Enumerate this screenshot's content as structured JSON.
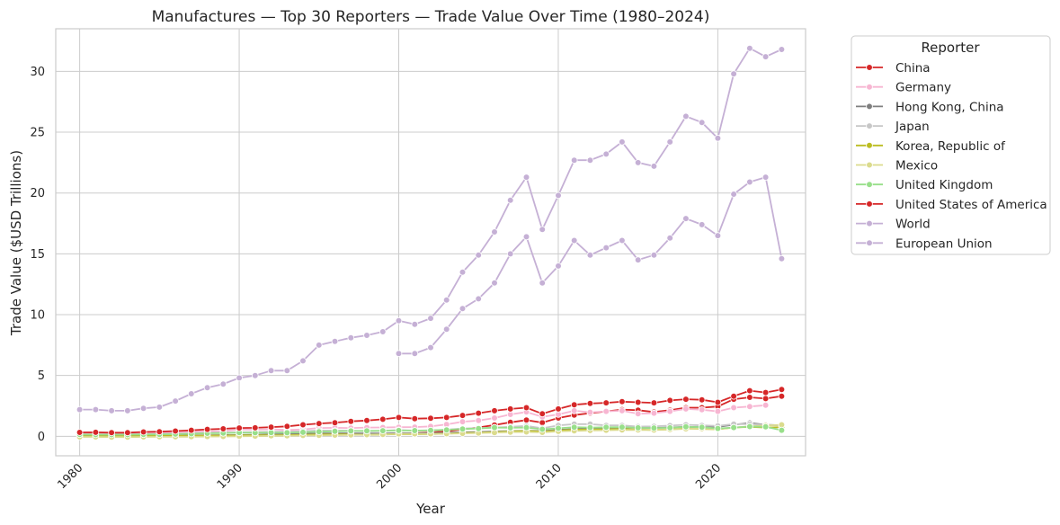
{
  "chart_data": {
    "type": "line",
    "title": "Manufactures — Top 30 Reporters — Trade Value Over Time (1980–2024)",
    "xlabel": "Year",
    "ylabel": "Trade Value ($USD Trillions)",
    "xlim": [
      1978.5,
      2025.5
    ],
    "ylim": [
      -1.6,
      33.5
    ],
    "xticks": [
      1980,
      1990,
      2000,
      2010,
      2020
    ],
    "yticks": [
      0,
      5,
      10,
      15,
      20,
      25,
      30
    ],
    "grid": true,
    "legend": {
      "title": "Reporter",
      "placement": "outside-right"
    },
    "series": [
      {
        "name": "China",
        "color": "#d62728",
        "x": [
          1980,
          1981,
          1982,
          1983,
          1984,
          1985,
          1986,
          1987,
          1988,
          1989,
          1990,
          1991,
          1992,
          1993,
          1994,
          1995,
          1996,
          1997,
          1998,
          1999,
          2000,
          2001,
          2002,
          2003,
          2004,
          2005,
          2006,
          2007,
          2008,
          2009,
          2010,
          2011,
          2012,
          2013,
          2014,
          2015,
          2016,
          2017,
          2018,
          2019,
          2020,
          2021,
          2022,
          2023,
          2024
        ],
        "y": [
          0.02,
          0.02,
          0.02,
          0.02,
          0.03,
          0.03,
          0.03,
          0.04,
          0.05,
          0.05,
          0.06,
          0.07,
          0.08,
          0.09,
          0.11,
          0.13,
          0.14,
          0.17,
          0.18,
          0.19,
          0.24,
          0.26,
          0.31,
          0.42,
          0.57,
          0.73,
          0.93,
          1.15,
          1.33,
          1.13,
          1.5,
          1.75,
          1.9,
          2.05,
          2.2,
          2.15,
          2.0,
          2.15,
          2.35,
          2.35,
          2.45,
          3.05,
          3.2,
          3.1,
          3.3
        ]
      },
      {
        "name": "Germany",
        "color": "#f7b6d2",
        "x": [
          1980,
          1981,
          1982,
          1983,
          1984,
          1985,
          1986,
          1987,
          1988,
          1989,
          1990,
          1991,
          1992,
          1993,
          1994,
          1995,
          1996,
          1997,
          1998,
          1999,
          2000,
          2001,
          2002,
          2003,
          2004,
          2005,
          2006,
          2007,
          2008,
          2009,
          2010,
          2011,
          2012,
          2013,
          2014,
          2015,
          2016,
          2017,
          2018,
          2019,
          2020,
          2021,
          2022,
          2023
        ],
        "y": [
          0.25,
          0.22,
          0.22,
          0.22,
          0.24,
          0.25,
          0.32,
          0.38,
          0.42,
          0.44,
          0.55,
          0.55,
          0.58,
          0.52,
          0.57,
          0.68,
          0.7,
          0.68,
          0.72,
          0.73,
          0.75,
          0.76,
          0.82,
          0.98,
          1.2,
          1.3,
          1.5,
          1.8,
          2.0,
          1.6,
          1.8,
          2.1,
          1.98,
          2.05,
          2.1,
          1.85,
          1.9,
          2.05,
          2.25,
          2.18,
          2.05,
          2.35,
          2.45,
          2.55
        ]
      },
      {
        "name": "Hong Kong, China",
        "color": "#7f7f7f",
        "x": [
          1980,
          1981,
          1982,
          1983,
          1984,
          1985,
          1986,
          1987,
          1988,
          1989,
          1990,
          1991,
          1992,
          1993,
          1994,
          1995,
          1996,
          1997,
          1998,
          1999,
          2000,
          2001,
          2002,
          2003,
          2004,
          2005,
          2006,
          2007,
          2008,
          2009,
          2010,
          2011,
          2012,
          2013,
          2014,
          2015,
          2016,
          2017,
          2018,
          2019,
          2020,
          2021,
          2022,
          2023,
          2024
        ],
        "y": [
          0.03,
          0.03,
          0.03,
          0.03,
          0.04,
          0.04,
          0.05,
          0.07,
          0.09,
          0.1,
          0.11,
          0.13,
          0.16,
          0.18,
          0.2,
          0.23,
          0.24,
          0.25,
          0.23,
          0.23,
          0.26,
          0.25,
          0.26,
          0.29,
          0.33,
          0.36,
          0.4,
          0.43,
          0.46,
          0.43,
          0.53,
          0.6,
          0.65,
          0.7,
          0.72,
          0.7,
          0.69,
          0.73,
          0.78,
          0.75,
          0.78,
          0.95,
          1.1,
          0.95,
          0.9
        ]
      },
      {
        "name": "Japan",
        "color": "#c7c7c7",
        "x": [
          1980,
          1981,
          1982,
          1983,
          1984,
          1985,
          1986,
          1987,
          1988,
          1989,
          1990,
          1991,
          1992,
          1993,
          1994,
          1995,
          1996,
          1997,
          1998,
          1999,
          2000,
          2001,
          2002,
          2003,
          2004,
          2005,
          2006,
          2007,
          2008,
          2009,
          2010,
          2011,
          2012,
          2013,
          2014,
          2015,
          2016,
          2017,
          2018,
          2019,
          2020,
          2021,
          2022,
          2023,
          2024
        ],
        "y": [
          0.15,
          0.16,
          0.15,
          0.16,
          0.18,
          0.18,
          0.22,
          0.25,
          0.29,
          0.31,
          0.33,
          0.35,
          0.37,
          0.39,
          0.42,
          0.48,
          0.47,
          0.46,
          0.42,
          0.45,
          0.52,
          0.47,
          0.48,
          0.55,
          0.65,
          0.68,
          0.72,
          0.78,
          0.85,
          0.66,
          0.9,
          1.0,
          1.0,
          0.9,
          0.9,
          0.8,
          0.82,
          0.88,
          0.95,
          0.9,
          0.85,
          1.0,
          1.0,
          0.95,
          0.9
        ]
      },
      {
        "name": "Korea, Republic of",
        "color": "#bcbd22",
        "x": [
          1980,
          1981,
          1982,
          1983,
          1984,
          1985,
          1986,
          1987,
          1988,
          1989,
          1990,
          1991,
          1992,
          1993,
          1994,
          1995,
          1996,
          1997,
          1998,
          1999,
          2000,
          2001,
          2002,
          2003,
          2004,
          2005,
          2006,
          2007,
          2008,
          2009,
          2010,
          2011,
          2012,
          2013,
          2014,
          2015,
          2016,
          2017,
          2018,
          2019,
          2020,
          2021,
          2022,
          2023,
          2024
        ],
        "y": [
          0.02,
          0.02,
          0.02,
          0.02,
          0.03,
          0.03,
          0.04,
          0.05,
          0.06,
          0.07,
          0.08,
          0.09,
          0.09,
          0.1,
          0.12,
          0.15,
          0.16,
          0.16,
          0.13,
          0.15,
          0.19,
          0.17,
          0.18,
          0.22,
          0.27,
          0.3,
          0.35,
          0.4,
          0.45,
          0.38,
          0.48,
          0.55,
          0.56,
          0.58,
          0.6,
          0.55,
          0.52,
          0.58,
          0.65,
          0.6,
          0.58,
          0.72,
          0.78,
          0.72,
          0.75
        ]
      },
      {
        "name": "Mexico",
        "color": "#dbdb8d",
        "x": [
          1980,
          1981,
          1982,
          1983,
          1984,
          1985,
          1986,
          1987,
          1988,
          1989,
          1990,
          1991,
          1992,
          1993,
          1994,
          1995,
          1996,
          1997,
          1998,
          1999,
          2000,
          2001,
          2002,
          2003,
          2004,
          2005,
          2006,
          2007,
          2008,
          2009,
          2010,
          2011,
          2012,
          2013,
          2014,
          2015,
          2016,
          2017,
          2018,
          2019,
          2020,
          2021,
          2022,
          2023,
          2024
        ],
        "y": [
          -0.05,
          -0.05,
          -0.06,
          -0.06,
          -0.05,
          -0.04,
          -0.04,
          -0.03,
          -0.02,
          -0.01,
          0.0,
          0.02,
          0.04,
          0.05,
          0.07,
          0.08,
          0.1,
          0.12,
          0.14,
          0.16,
          0.2,
          0.2,
          0.2,
          0.21,
          0.24,
          0.27,
          0.31,
          0.34,
          0.36,
          0.32,
          0.4,
          0.45,
          0.48,
          0.5,
          0.53,
          0.52,
          0.51,
          0.56,
          0.62,
          0.63,
          0.6,
          0.72,
          0.82,
          0.88,
          0.95
        ]
      },
      {
        "name": "United Kingdom",
        "color": "#98df8a",
        "x": [
          1980,
          1981,
          1982,
          1983,
          1984,
          1985,
          1986,
          1987,
          1988,
          1989,
          1990,
          1991,
          1992,
          1993,
          1994,
          1995,
          1996,
          1997,
          1998,
          1999,
          2000,
          2001,
          2002,
          2003,
          2004,
          2005,
          2006,
          2007,
          2008,
          2009,
          2010,
          2011,
          2012,
          2013,
          2014,
          2015,
          2016,
          2017,
          2018,
          2019,
          2020,
          2021,
          2022,
          2023,
          2024
        ],
        "y": [
          0.15,
          0.14,
          0.14,
          0.14,
          0.15,
          0.16,
          0.18,
          0.21,
          0.25,
          0.26,
          0.3,
          0.29,
          0.3,
          0.29,
          0.33,
          0.38,
          0.41,
          0.44,
          0.45,
          0.46,
          0.48,
          0.47,
          0.49,
          0.53,
          0.6,
          0.64,
          0.72,
          0.7,
          0.72,
          0.58,
          0.66,
          0.75,
          0.72,
          0.74,
          0.76,
          0.7,
          0.68,
          0.7,
          0.78,
          0.75,
          0.65,
          0.72,
          0.8,
          0.78,
          0.5
        ]
      },
      {
        "name": "United States of America",
        "color": "#d62728",
        "x": [
          1980,
          1981,
          1982,
          1983,
          1984,
          1985,
          1986,
          1987,
          1988,
          1989,
          1990,
          1991,
          1992,
          1993,
          1994,
          1995,
          1996,
          1997,
          1998,
          1999,
          2000,
          2001,
          2002,
          2003,
          2004,
          2005,
          2006,
          2007,
          2008,
          2009,
          2010,
          2011,
          2012,
          2013,
          2014,
          2015,
          2016,
          2017,
          2018,
          2019,
          2020,
          2021,
          2022,
          2023,
          2024
        ],
        "y": [
          0.32,
          0.33,
          0.3,
          0.3,
          0.36,
          0.38,
          0.43,
          0.5,
          0.57,
          0.62,
          0.68,
          0.7,
          0.76,
          0.82,
          0.95,
          1.05,
          1.12,
          1.23,
          1.3,
          1.4,
          1.55,
          1.45,
          1.48,
          1.55,
          1.72,
          1.9,
          2.1,
          2.25,
          2.35,
          1.85,
          2.25,
          2.6,
          2.7,
          2.75,
          2.85,
          2.8,
          2.75,
          2.95,
          3.05,
          3.0,
          2.8,
          3.3,
          3.75,
          3.6,
          3.85
        ]
      },
      {
        "name": "World",
        "color": "#c5b0d5",
        "x": [
          1980,
          1981,
          1982,
          1983,
          1984,
          1985,
          1986,
          1987,
          1988,
          1989,
          1990,
          1991,
          1992,
          1993,
          1994,
          1995,
          1996,
          1997,
          1998,
          1999,
          2000,
          2001,
          2002,
          2003,
          2004,
          2005,
          2006,
          2007,
          2008,
          2009,
          2010,
          2011,
          2012,
          2013,
          2014,
          2015,
          2016,
          2017,
          2018,
          2019,
          2020,
          2021,
          2022,
          2023,
          2024
        ],
        "y": [
          2.2,
          2.2,
          2.1,
          2.1,
          2.3,
          2.4,
          2.9,
          3.5,
          4.0,
          4.3,
          4.8,
          5.0,
          5.4,
          5.4,
          6.2,
          7.5,
          7.8,
          8.1,
          8.3,
          8.6,
          9.5,
          9.2,
          9.7,
          11.2,
          13.5,
          14.9,
          16.8,
          19.4,
          21.3,
          17.0,
          19.8,
          22.7,
          22.7,
          23.2,
          24.2,
          22.5,
          22.2,
          24.2,
          26.3,
          25.8,
          24.5,
          29.8,
          31.9,
          31.2,
          31.8
        ]
      },
      {
        "name": "European Union",
        "color": "#c5b0d5",
        "x": [
          2000,
          2001,
          2002,
          2003,
          2004,
          2005,
          2006,
          2007,
          2008,
          2009,
          2010,
          2011,
          2012,
          2013,
          2014,
          2015,
          2016,
          2017,
          2018,
          2019,
          2020,
          2021,
          2022,
          2023,
          2024
        ],
        "y": [
          6.8,
          6.8,
          7.3,
          8.8,
          10.5,
          11.3,
          12.6,
          15.0,
          16.4,
          12.6,
          14.0,
          16.1,
          14.9,
          15.5,
          16.1,
          14.5,
          14.9,
          16.3,
          17.9,
          17.4,
          16.5,
          19.9,
          20.9,
          21.3,
          14.6
        ]
      }
    ]
  }
}
